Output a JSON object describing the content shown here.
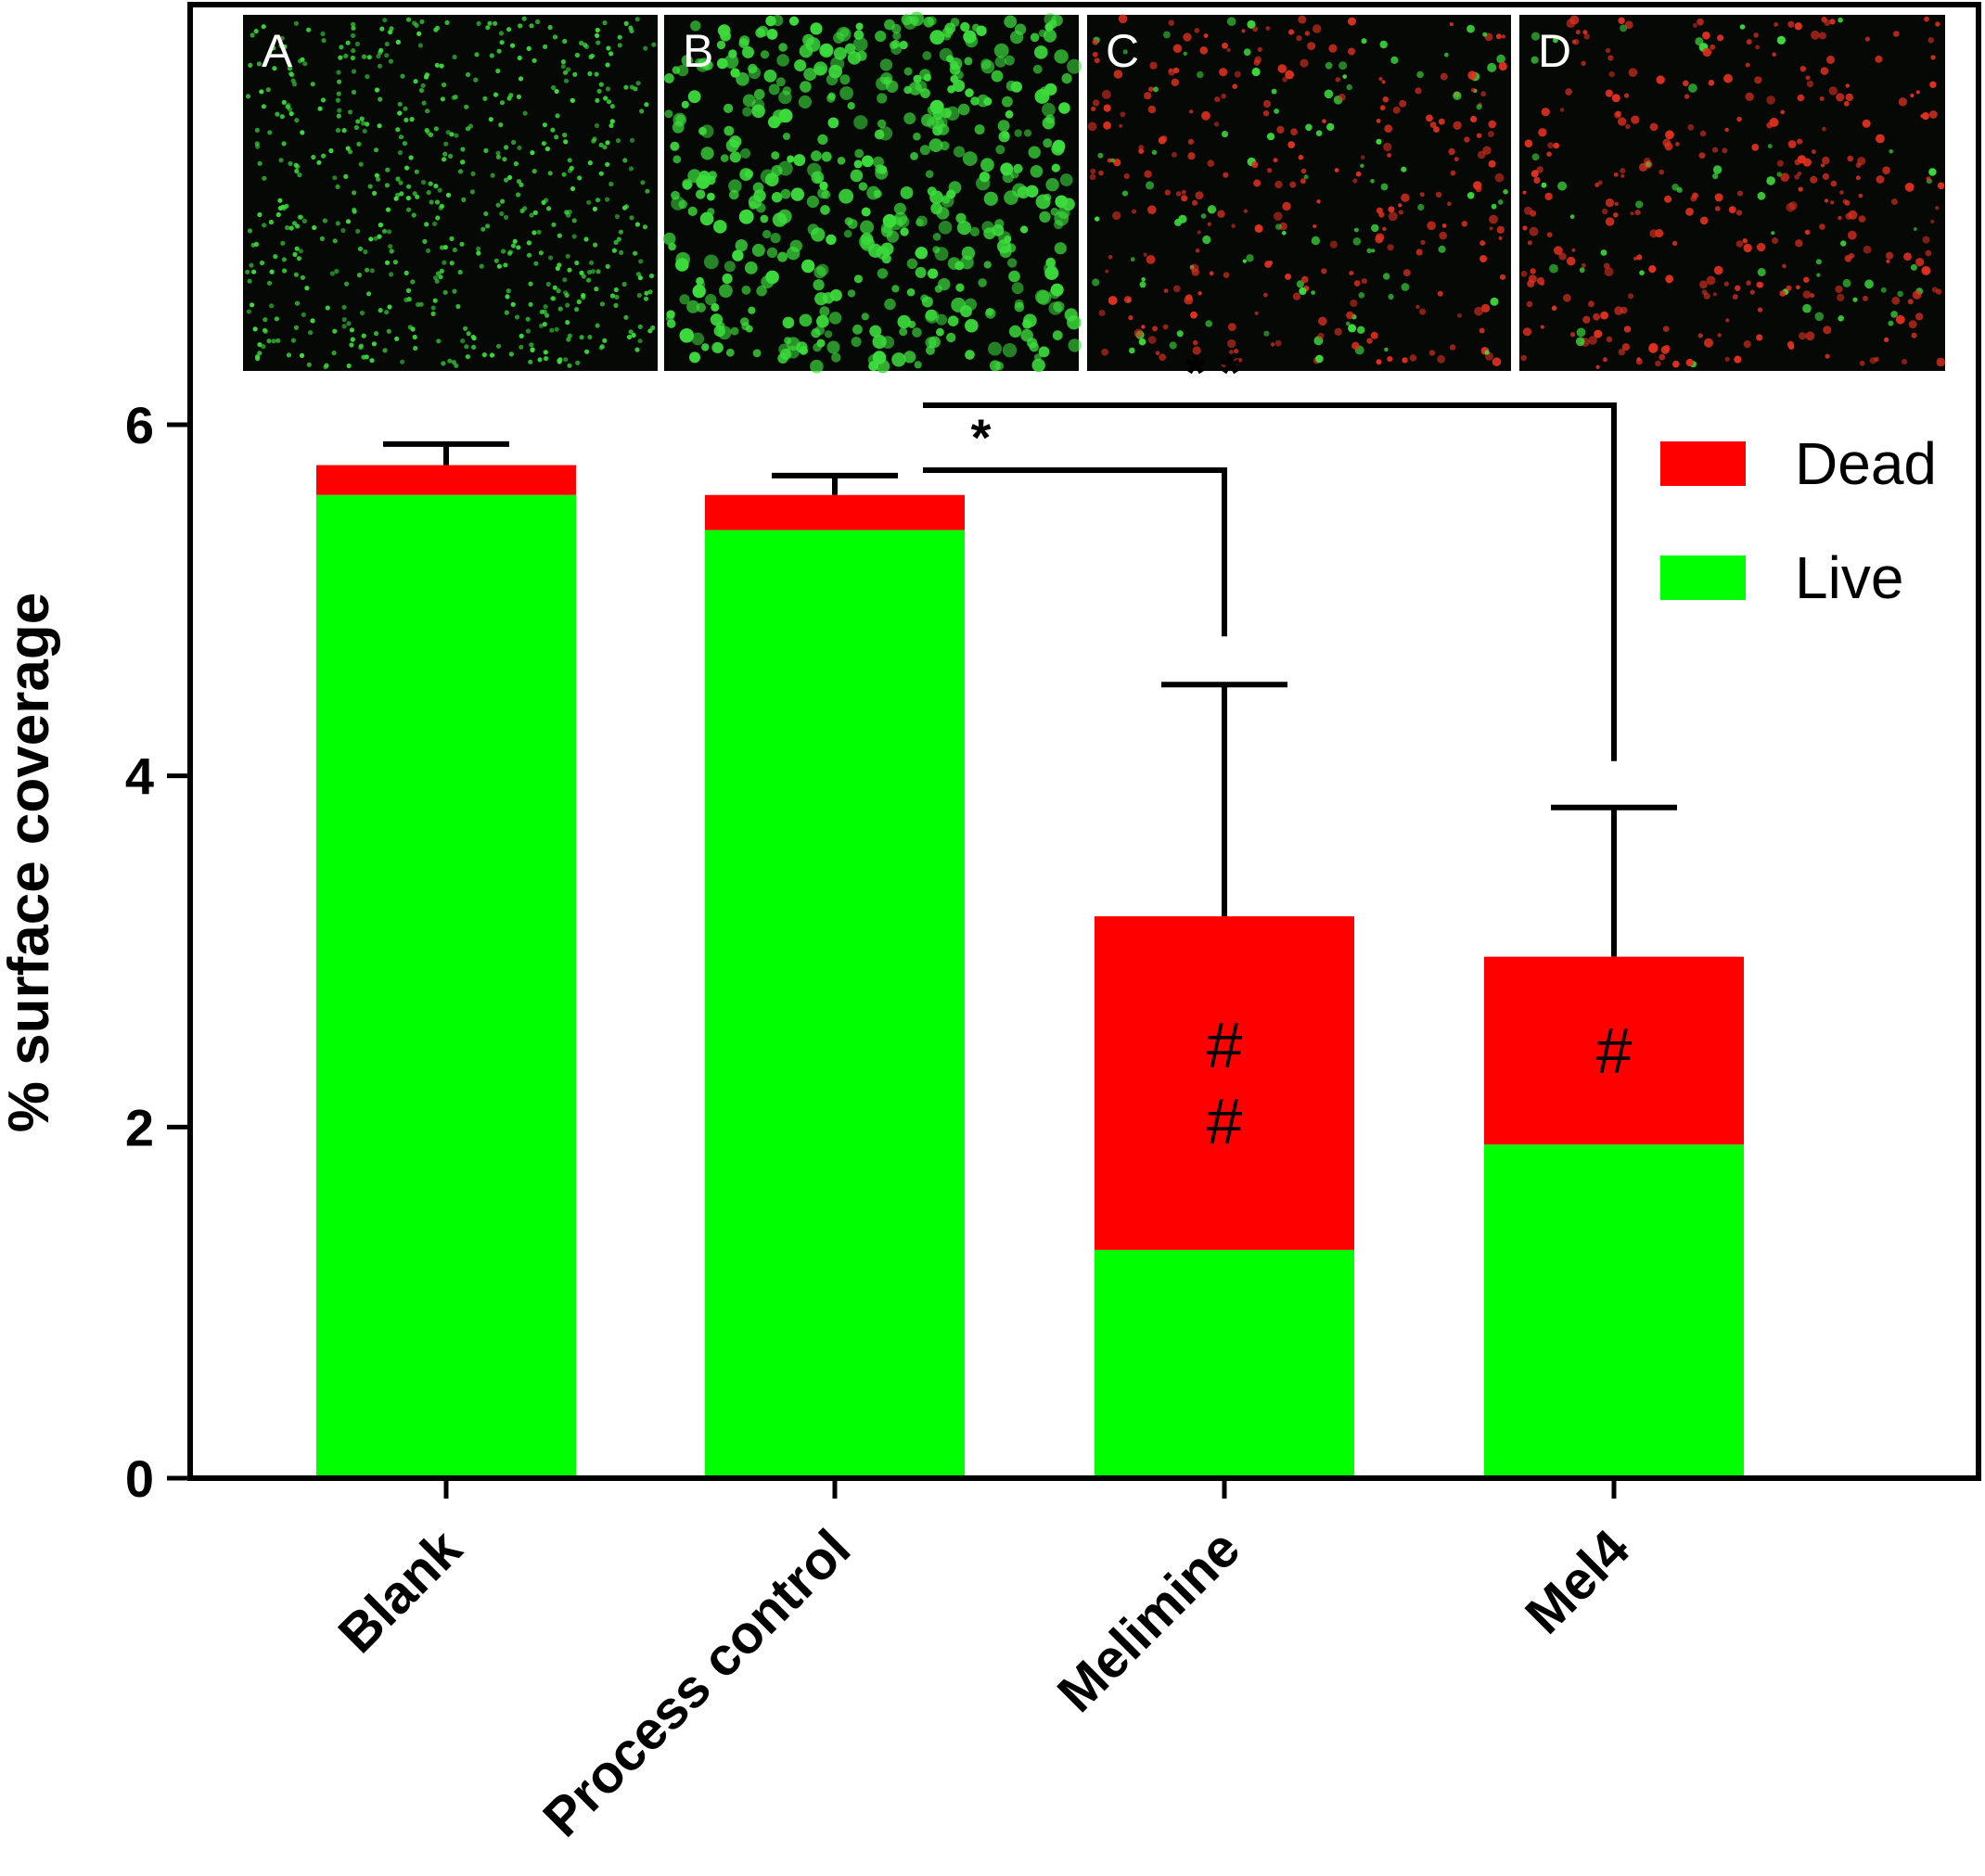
{
  "chart_data": {
    "type": "bar",
    "stacked": true,
    "categories": [
      "Blank",
      "Process control",
      "Melimine",
      "Mel4"
    ],
    "series": [
      {
        "name": "Live",
        "color": "#00ff00",
        "values": [
          5.6,
          5.4,
          1.3,
          1.9
        ]
      },
      {
        "name": "Dead",
        "color": "#ff0000",
        "values": [
          0.17,
          0.2,
          1.9,
          1.07
        ]
      }
    ],
    "error_bars_upper": [
      5.89,
      5.71,
      4.52,
      3.82
    ],
    "ylabel": "% surface coverage",
    "ylim": [
      0,
      6.2
    ],
    "yticks": [
      "0",
      "2",
      "4",
      "6"
    ],
    "legend": {
      "position": "top-right",
      "entries": [
        "Dead",
        "Live"
      ]
    },
    "significance": [
      {
        "from": "Process control",
        "to": "Melimine",
        "label": "*"
      },
      {
        "from": "Process control",
        "to": "Mel4",
        "label": "* *"
      }
    ],
    "annotations": [
      {
        "category": "Melimine",
        "lines": [
          "#",
          "#"
        ]
      },
      {
        "category": "Mel4",
        "lines": [
          "#"
        ]
      }
    ],
    "inset_panels": [
      {
        "label": "A",
        "live_color": "#3cdc3c",
        "dead_color": "#e03020",
        "live_ratio": 1.0
      },
      {
        "label": "B",
        "live_color": "#3cdc3c",
        "dead_color": "#e03020",
        "live_ratio": 1.0
      },
      {
        "label": "C",
        "live_color": "#3cdc3c",
        "dead_color": "#e03020",
        "live_ratio": 0.25
      },
      {
        "label": "D",
        "live_color": "#3cdc3c",
        "dead_color": "#e03020",
        "live_ratio": 0.15
      }
    ]
  }
}
